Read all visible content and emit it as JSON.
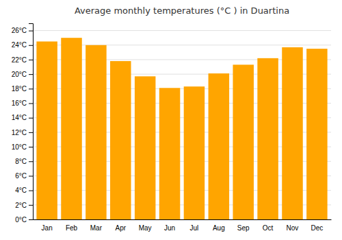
{
  "chart_data": {
    "type": "bar",
    "title": "Average monthly temperatures (°C ) in Duartina",
    "categories": [
      "Jan",
      "Feb",
      "Mar",
      "Apr",
      "May",
      "Jun",
      "Jul",
      "Aug",
      "Sep",
      "Oct",
      "Nov",
      "Dec"
    ],
    "values": [
      24.5,
      25.0,
      24.0,
      21.8,
      19.7,
      18.1,
      18.3,
      20.1,
      21.3,
      22.2,
      23.7,
      23.5
    ],
    "color": "#FFA500",
    "ylim": [
      0,
      27
    ],
    "yticks": [
      {
        "value": 0,
        "label": "0°C"
      },
      {
        "value": 2,
        "label": "2°C"
      },
      {
        "value": 4,
        "label": "4°C"
      },
      {
        "value": 6,
        "label": "6°C"
      },
      {
        "value": 8,
        "label": "8°C"
      },
      {
        "value": 10,
        "label": "10°C"
      },
      {
        "value": 12,
        "label": "12°C"
      },
      {
        "value": 14,
        "label": "14°C"
      },
      {
        "value": 16,
        "label": "16°C"
      },
      {
        "value": 18,
        "label": "18°C"
      },
      {
        "value": 20,
        "label": "20°C"
      },
      {
        "value": 22,
        "label": "22°C"
      },
      {
        "value": 24,
        "label": "24°C"
      },
      {
        "value": 26,
        "label": "26°C"
      }
    ],
    "grid": true
  }
}
